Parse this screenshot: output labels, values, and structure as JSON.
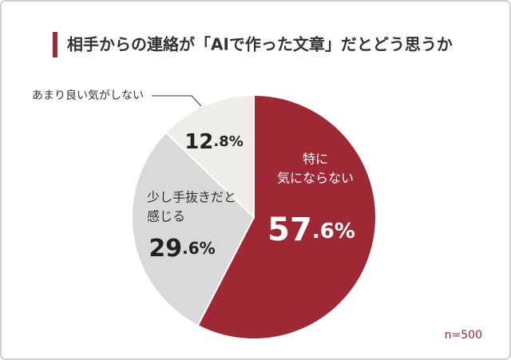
{
  "chart_data": {
    "type": "pie",
    "title": "相手からの連絡が「AIで作った文章」だとどう思うか",
    "categories": [
      [
        "特に",
        "気にならない"
      ],
      [
        "少し手抜きだと",
        "感じる"
      ],
      [
        "あまり良い気がしない"
      ]
    ],
    "values": [
      57.6,
      29.6,
      12.8
    ],
    "value_labels": [
      "57.6%",
      "29.6%",
      "12.8%"
    ],
    "colors": [
      "#9e2935",
      "#d9d9d9",
      "#efede8"
    ],
    "note": "n=500"
  }
}
